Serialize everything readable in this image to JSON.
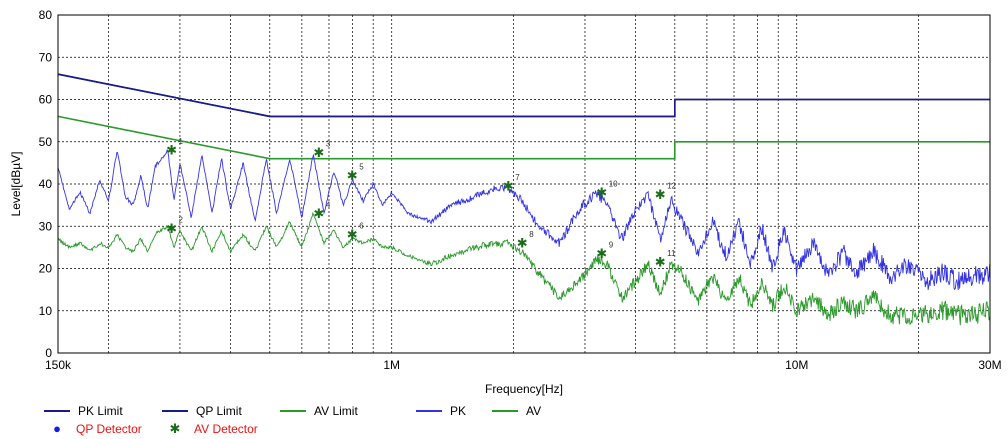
{
  "chart_data": {
    "type": "line",
    "title": "",
    "xlabel": "Frequency[Hz]",
    "ylabel": "Level[dBµV]",
    "xscale": "log",
    "xlim": [
      150000,
      30000000
    ],
    "ylim": [
      0,
      80
    ],
    "grid": true,
    "legend_position": "bottom-left",
    "x_ticks": [
      {
        "value": 150000,
        "label": "150k"
      },
      {
        "value": 1000000,
        "label": "1M"
      },
      {
        "value": 10000000,
        "label": "10M"
      },
      {
        "value": 30000000,
        "label": "30M"
      }
    ],
    "y_ticks": [
      {
        "value": 0,
        "label": "0"
      },
      {
        "value": 10,
        "label": "10"
      },
      {
        "value": 20,
        "label": "20"
      },
      {
        "value": 30,
        "label": "30"
      },
      {
        "value": 40,
        "label": "40"
      },
      {
        "value": 50,
        "label": "50"
      },
      {
        "value": 60,
        "label": "60"
      },
      {
        "value": 70,
        "label": "70"
      },
      {
        "value": 80,
        "label": "80"
      }
    ],
    "series": [
      {
        "name": "PK Limit",
        "color": "#1a1a8c",
        "x": [
          150000,
          500000,
          500000,
          5000000,
          5000000,
          30000000
        ],
        "y": [
          66,
          56,
          56,
          56,
          60,
          60
        ]
      },
      {
        "name": "QP Limit",
        "color": "#1a1a8c",
        "x": [
          150000,
          500000,
          500000,
          5000000,
          5000000,
          30000000
        ],
        "y": [
          66,
          56,
          56,
          56,
          60,
          60
        ]
      },
      {
        "name": "AV Limit",
        "color": "#2a9a2a",
        "x": [
          150000,
          500000,
          500000,
          5000000,
          5000000,
          30000000
        ],
        "y": [
          56,
          46,
          46,
          46,
          50,
          50
        ]
      },
      {
        "name": "PK",
        "color": "#3333e6",
        "x": [
          150000,
          160000,
          170000,
          180000,
          190000,
          200000,
          210000,
          220000,
          230000,
          240000,
          250000,
          260000,
          280000,
          290000,
          300000,
          320000,
          340000,
          360000,
          380000,
          400000,
          430000,
          460000,
          490000,
          520000,
          560000,
          600000,
          640000,
          680000,
          720000,
          760000,
          800000,
          850000,
          900000,
          950000,
          1000000,
          1100000,
          1250000,
          1400000,
          1600000,
          1800000,
          1940000,
          2100000,
          2300000,
          2600000,
          2900000,
          3200000,
          3400000,
          3700000,
          4000000,
          4300000,
          4600000,
          4900000,
          5200000,
          5700000,
          6200000,
          6700000,
          7200000,
          7700000,
          8200000,
          8700000,
          9300000,
          10000000,
          11000000,
          12000000,
          13000000,
          14000000,
          15500000,
          17000000,
          19000000,
          21000000,
          23000000,
          25000000,
          27000000,
          30000000
        ],
        "y": [
          44,
          34,
          38,
          33,
          41,
          36,
          48,
          37,
          35,
          42,
          34,
          44,
          48,
          36,
          45,
          32,
          47,
          33,
          46,
          34,
          45,
          31,
          46,
          33,
          46,
          32,
          47,
          33,
          43,
          35,
          41,
          36,
          40,
          35,
          38,
          33,
          31,
          35,
          37,
          39,
          39,
          36,
          30,
          26,
          34,
          38,
          35,
          27,
          34,
          37,
          27,
          36,
          31,
          24,
          31,
          23,
          31,
          21,
          30,
          20,
          29,
          20,
          26,
          18,
          24,
          19,
          24,
          18,
          21,
          17,
          19,
          17,
          18,
          19
        ]
      },
      {
        "name": "AV",
        "color": "#2a9a2a",
        "x": [
          150000,
          160000,
          170000,
          180000,
          190000,
          200000,
          210000,
          220000,
          230000,
          240000,
          250000,
          260000,
          280000,
          290000,
          300000,
          320000,
          340000,
          360000,
          380000,
          400000,
          430000,
          460000,
          490000,
          520000,
          560000,
          600000,
          640000,
          680000,
          720000,
          760000,
          800000,
          850000,
          900000,
          950000,
          1000000,
          1100000,
          1250000,
          1400000,
          1600000,
          1800000,
          1940000,
          2100000,
          2300000,
          2600000,
          2900000,
          3200000,
          3400000,
          3700000,
          4000000,
          4300000,
          4600000,
          4900000,
          5200000,
          5700000,
          6200000,
          6700000,
          7200000,
          7700000,
          8200000,
          8700000,
          9300000,
          10000000,
          11000000,
          12000000,
          13000000,
          14000000,
          15500000,
          17000000,
          19000000,
          21000000,
          23000000,
          25000000,
          27000000,
          30000000
        ],
        "y": [
          27,
          25,
          26,
          24,
          26,
          25,
          28,
          25,
          24,
          27,
          24,
          28,
          30,
          25,
          29,
          24,
          30,
          24,
          29,
          24,
          28,
          24,
          30,
          25,
          31,
          25,
          33,
          26,
          29,
          25,
          27,
          26,
          27,
          25,
          25,
          23,
          21,
          23,
          25,
          26,
          26,
          24,
          19,
          13,
          17,
          22,
          21,
          13,
          17,
          21,
          14,
          21,
          19,
          12,
          18,
          12,
          18,
          11,
          17,
          11,
          16,
          10,
          13,
          9,
          12,
          10,
          13,
          9,
          9,
          9,
          10,
          9,
          9,
          10
        ]
      }
    ],
    "detector_markers": [
      {
        "label": "1",
        "type": "QP Detector",
        "freq": 286000,
        "level": 48.0
      },
      {
        "label": "2",
        "type": "AV Detector",
        "freq": 286000,
        "level": 29.5
      },
      {
        "label": "3",
        "type": "QP Detector",
        "freq": 661000,
        "level": 47.5
      },
      {
        "label": "4",
        "type": "AV Detector",
        "freq": 661000,
        "level": 33.0
      },
      {
        "label": "5",
        "type": "QP Detector",
        "freq": 799000,
        "level": 42.0
      },
      {
        "label": "6",
        "type": "AV Detector",
        "freq": 799000,
        "level": 28.0
      },
      {
        "label": "7",
        "type": "QP Detector",
        "freq": 1940000,
        "level": 39.5
      },
      {
        "label": "8",
        "type": "AV Detector",
        "freq": 2100000,
        "level": 26.0
      },
      {
        "label": "9",
        "type": "AV Detector",
        "freq": 3300000,
        "level": 23.5
      },
      {
        "label": "10",
        "type": "QP Detector",
        "freq": 3300000,
        "level": 38.0
      },
      {
        "label": "11",
        "type": "AV Detector",
        "freq": 4600000,
        "level": 21.5
      },
      {
        "label": "12",
        "type": "QP Detector",
        "freq": 4600000,
        "level": 37.5
      }
    ]
  },
  "legend": {
    "lines": [
      {
        "label": "PK Limit",
        "color": "#1a1a8c"
      },
      {
        "label": "QP Limit",
        "color": "#1a1a8c"
      },
      {
        "label": "AV Limit",
        "color": "#2a9a2a"
      },
      {
        "label": "PK",
        "color": "#3333e6"
      },
      {
        "label": "AV",
        "color": "#2a9a2a"
      }
    ],
    "markers": [
      {
        "label": "QP Detector",
        "symbol": "●",
        "symbol_color": "#1a1ae6",
        "text_color": "#e11"
      },
      {
        "label": "AV Detector",
        "symbol": "✱",
        "symbol_color": "#1a6b1a",
        "text_color": "#e11"
      }
    ]
  }
}
